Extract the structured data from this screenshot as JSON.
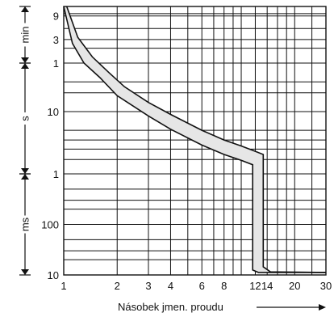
{
  "chart_data": {
    "type": "area",
    "title": "",
    "xlabel": "Násobek jmen. proudu",
    "x_scale": "log",
    "xlim": [
      1,
      30
    ],
    "x_ticks": [
      {
        "value": 1,
        "label": "1"
      },
      {
        "value": 2,
        "label": "2"
      },
      {
        "value": 3,
        "label": "3"
      },
      {
        "value": 4,
        "label": "4"
      },
      {
        "value": 6,
        "label": "6"
      },
      {
        "value": 8,
        "label": "8"
      },
      {
        "value": 12,
        "label": "12"
      },
      {
        "value": 14,
        "label": "14"
      },
      {
        "value": 20,
        "label": "20"
      },
      {
        "value": 30,
        "label": "30"
      }
    ],
    "y_scale": "log",
    "ylim_seconds": [
      0.01,
      840
    ],
    "y_ticks": [
      {
        "seconds": 540,
        "label": "9"
      },
      {
        "seconds": 180,
        "label": "3"
      },
      {
        "seconds": 60,
        "label": "1"
      },
      {
        "seconds": 10,
        "label": "10"
      },
      {
        "seconds": 1,
        "label": "1"
      },
      {
        "seconds": 0.1,
        "label": "100"
      },
      {
        "seconds": 0.01,
        "label": "10"
      }
    ],
    "y_units": [
      {
        "label": "min",
        "from": 60,
        "to": 840
      },
      {
        "label": "s",
        "from": 1,
        "to": 60
      },
      {
        "label": "ms",
        "from": 0.01,
        "to": 1
      }
    ],
    "band": {
      "color": "#e6e6e6",
      "lower": [
        {
          "x": 1.0,
          "t": 840
        },
        {
          "x": 1.12,
          "t": 150
        },
        {
          "x": 1.3,
          "t": 60
        },
        {
          "x": 1.6,
          "t": 35
        },
        {
          "x": 2.0,
          "t": 18
        },
        {
          "x": 3.0,
          "t": 8.5
        },
        {
          "x": 4.0,
          "t": 5.2
        },
        {
          "x": 6.0,
          "t": 2.9
        },
        {
          "x": 8.0,
          "t": 2.05
        },
        {
          "x": 10.0,
          "t": 1.65
        },
        {
          "x": 11.6,
          "t": 1.4
        },
        {
          "x": 11.6,
          "t": 0.0125
        },
        {
          "x": 12.5,
          "t": 0.0112
        },
        {
          "x": 30.0,
          "t": 0.0112
        }
      ],
      "upper": [
        {
          "x": 1.04,
          "t": 840
        },
        {
          "x": 1.2,
          "t": 200
        },
        {
          "x": 1.45,
          "t": 80
        },
        {
          "x": 1.8,
          "t": 42
        },
        {
          "x": 2.2,
          "t": 25
        },
        {
          "x": 3.0,
          "t": 14
        },
        {
          "x": 4.0,
          "t": 9
        },
        {
          "x": 6.0,
          "t": 5
        },
        {
          "x": 8.0,
          "t": 3.5
        },
        {
          "x": 10.0,
          "t": 2.8
        },
        {
          "x": 12.0,
          "t": 2.3
        },
        {
          "x": 13.3,
          "t": 2.05
        },
        {
          "x": 13.3,
          "t": 0.0145
        },
        {
          "x": 14.6,
          "t": 0.0115
        },
        {
          "x": 30.0,
          "t": 0.0112
        }
      ]
    }
  }
}
